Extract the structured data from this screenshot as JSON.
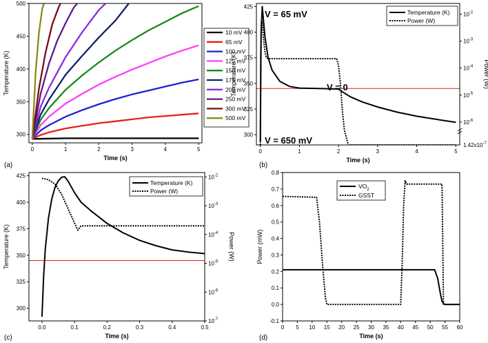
{
  "chart_data": [
    {
      "panel": "(a)",
      "type": "line",
      "xlabel": "Time (s)",
      "ylabel": "Temperature (K)",
      "xlim": [
        -0.1,
        5.1
      ],
      "ylim": [
        287,
        500
      ],
      "xticks": [
        0,
        1,
        2,
        3,
        4,
        5
      ],
      "yticks": [
        300,
        350,
        400,
        450,
        500
      ],
      "legend_position": "right",
      "series": [
        {
          "name": "10 mV",
          "color": "#000000",
          "x": [
            0,
            1,
            2,
            3,
            4,
            5
          ],
          "y": [
            293,
            294,
            294,
            294,
            294,
            294
          ]
        },
        {
          "name": "65 mV",
          "color": "#e8211b",
          "x": [
            0,
            0.25,
            0.5,
            1,
            1.5,
            2,
            2.5,
            3,
            3.5,
            4,
            4.5,
            5
          ],
          "y": [
            293,
            299,
            303,
            309,
            313,
            317,
            320,
            323,
            326,
            328,
            330,
            332
          ]
        },
        {
          "name": "100 mV",
          "color": "#1d1fd1",
          "x": [
            0,
            0.25,
            0.5,
            1,
            1.5,
            2,
            2.5,
            3,
            3.5,
            4,
            4.5,
            5
          ],
          "y": [
            293,
            306,
            314,
            327,
            337,
            346,
            354,
            361,
            367,
            373,
            379,
            384
          ]
        },
        {
          "name": "125 mV",
          "color": "#ff3df5",
          "x": [
            0,
            0.25,
            0.5,
            1,
            1.5,
            2,
            2.5,
            3,
            3.5,
            4,
            4.5,
            5
          ],
          "y": [
            293,
            314,
            327,
            347,
            362,
            376,
            388,
            399,
            409,
            419,
            428,
            436
          ]
        },
        {
          "name": "150 mV",
          "color": "#178a17",
          "x": [
            0,
            0.25,
            0.5,
            1,
            1.5,
            2,
            2.5,
            3,
            3.5,
            4,
            4.5,
            5
          ],
          "y": [
            293,
            322,
            340,
            368,
            390,
            410,
            428,
            444,
            459,
            472,
            485,
            496
          ]
        },
        {
          "name": "175 mV",
          "color": "#0c1f6b",
          "x": [
            0,
            0.25,
            0.5,
            1,
            1.5,
            2,
            2.5,
            2.9
          ],
          "y": [
            293,
            330,
            353,
            391,
            420,
            448,
            474,
            500
          ]
        },
        {
          "name": "200 mV",
          "color": "#8b2be2",
          "x": [
            0,
            0.25,
            0.5,
            1,
            1.5,
            2,
            2.2
          ],
          "y": [
            293,
            342,
            371,
            418,
            456,
            490,
            500
          ]
        },
        {
          "name": "250 mV",
          "color": "#5a1a8c",
          "x": [
            0,
            0.25,
            0.5,
            0.75,
            1,
            1.25,
            1.35
          ],
          "y": [
            293,
            362,
            408,
            443,
            470,
            494,
            500
          ]
        },
        {
          "name": "300 mV",
          "color": "#7a0a1a",
          "x": [
            0,
            0.2,
            0.4,
            0.6,
            0.8,
            0.85
          ],
          "y": [
            293,
            370,
            425,
            468,
            495,
            500
          ]
        },
        {
          "name": "500 mV",
          "color": "#8c8a14",
          "x": [
            0,
            0.1,
            0.2,
            0.3,
            0.35
          ],
          "y": [
            293,
            395,
            455,
            492,
            500
          ]
        }
      ]
    },
    {
      "panel": "(b)",
      "type": "line",
      "xlabel": "Time (s)",
      "ylabel": "Temperature (K)",
      "y2label": "Power (W)",
      "xlim": [
        -0.1,
        5.1
      ],
      "ylim": [
        290,
        428
      ],
      "xticks": [
        0,
        1,
        2,
        3,
        4,
        5
      ],
      "yticks": [
        300,
        325,
        350,
        375,
        400,
        425
      ],
      "y2_log_ticks": [
        "10^-6",
        "10^-5",
        "10^-4",
        "10^-3",
        "10^-2"
      ],
      "y2_bottom_tick": "1.42x10^-7",
      "reference_line_K": 345,
      "legend_position": "top-right",
      "annotations": [
        "V = 65 mV",
        "V = 0",
        "V = 650 mV"
      ],
      "series": [
        {
          "name": "Temperature (K)",
          "axis": "left",
          "style": "solid",
          "x": [
            0,
            0.02,
            0.05,
            0.08,
            0.12,
            0.2,
            0.3,
            0.5,
            0.75,
            1.0,
            1.5,
            2.0,
            2.05,
            2.3,
            2.6,
            3.0,
            3.5,
            4.0,
            4.5,
            5.0
          ],
          "y": [
            293,
            400,
            425,
            412,
            395,
            375,
            363,
            352,
            347,
            345.5,
            345,
            344.5,
            343,
            337,
            332,
            327,
            322,
            318,
            315,
            312
          ]
        },
        {
          "name": "Power (W)",
          "axis": "right",
          "style": "dotted",
          "x": [
            0,
            0.01,
            0.03,
            0.05,
            0.08,
            0.12,
            0.15,
            0.2,
            1.95,
            2.0,
            2.05,
            2.1,
            2.15,
            2.25,
            5.0
          ],
          "logy": [
            -6.85,
            -3.5,
            -2.2,
            -2.3,
            -2.9,
            -3.4,
            -3.6,
            -3.65,
            -3.65,
            -3.9,
            -4.6,
            -5.6,
            -6.3,
            -6.85,
            -6.85
          ]
        }
      ]
    },
    {
      "panel": "(c)",
      "type": "line",
      "xlabel": "Time (s)",
      "ylabel": "Temperature (K)",
      "y2label": "Power (W)",
      "xlim": [
        -0.04,
        0.5
      ],
      "ylim": [
        288,
        428
      ],
      "xticks": [
        0.0,
        0.1,
        0.2,
        0.3,
        0.4,
        0.5
      ],
      "yticks": [
        300,
        325,
        350,
        375,
        400,
        425
      ],
      "y2_log_ticks": [
        "10^-7",
        "10^-6",
        "10^-5",
        "10^-4",
        "10^-3",
        "10^-2"
      ],
      "reference_line_K": 345,
      "legend_position": "top-right",
      "series": [
        {
          "name": "Temperature (K)",
          "axis": "left",
          "style": "solid",
          "x": [
            0,
            0.005,
            0.01,
            0.02,
            0.03,
            0.04,
            0.05,
            0.06,
            0.07,
            0.08,
            0.1,
            0.12,
            0.15,
            0.2,
            0.25,
            0.3,
            0.35,
            0.4,
            0.45,
            0.5
          ],
          "y": [
            292,
            330,
            355,
            385,
            403,
            414,
            420,
            423.5,
            424,
            420,
            409,
            400,
            392,
            380,
            371,
            364,
            359,
            355,
            353,
            351.5
          ]
        },
        {
          "name": "Power (W)",
          "axis": "right",
          "style": "dotted",
          "x": [
            0,
            0.02,
            0.04,
            0.06,
            0.08,
            0.1,
            0.11,
            0.12,
            0.5
          ],
          "logy": [
            -2.05,
            -2.1,
            -2.25,
            -2.6,
            -3.1,
            -3.6,
            -3.85,
            -3.7,
            -3.7
          ]
        }
      ]
    },
    {
      "panel": "(d)",
      "type": "line",
      "xlabel": "Time (s)",
      "ylabel": "Power (mW)",
      "xlim": [
        0,
        60
      ],
      "ylim": [
        -0.1,
        0.8
      ],
      "xticks": [
        0,
        5,
        10,
        15,
        20,
        25,
        30,
        35,
        40,
        45,
        50,
        55,
        60
      ],
      "yticks": [
        -0.1,
        0.0,
        0.1,
        0.2,
        0.3,
        0.4,
        0.5,
        0.6,
        0.7,
        0.8
      ],
      "legend_position": "top-center",
      "series": [
        {
          "name": "VO",
          "name_subscript": "2",
          "style": "solid",
          "x": [
            0,
            51.5,
            52.5,
            53.5,
            54,
            54.5,
            55,
            60
          ],
          "y": [
            0.21,
            0.21,
            0.16,
            0.06,
            0.02,
            0.005,
            0,
            0
          ]
        },
        {
          "name": "GSST",
          "style": "dotted",
          "x": [
            0,
            11.5,
            12.5,
            13.5,
            14.5,
            15,
            40,
            40.5,
            41,
            41.5,
            42,
            54,
            54.5,
            60
          ],
          "y": [
            0.655,
            0.65,
            0.5,
            0.25,
            0.04,
            0,
            0,
            0.25,
            0.6,
            0.75,
            0.73,
            0.73,
            0,
            0
          ]
        }
      ]
    }
  ]
}
